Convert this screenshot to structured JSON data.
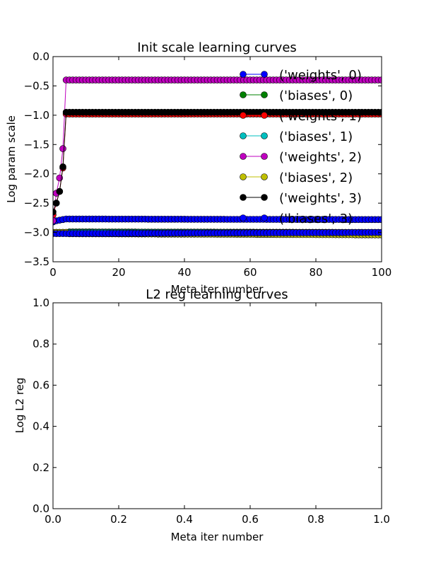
{
  "chart_data": [
    {
      "type": "line",
      "title": "Init scale learning curves",
      "xlabel": "Meta iter number",
      "ylabel": "Log param scale",
      "xlim": [
        0,
        100
      ],
      "ylim": [
        -3.5,
        0.0
      ],
      "xticks": [
        0,
        20,
        40,
        60,
        80,
        100
      ],
      "yticks": [
        0.0,
        -0.5,
        -1.0,
        -1.5,
        -2.0,
        -2.5,
        -3.0,
        -3.5
      ],
      "xtick_labels": [
        "0",
        "20",
        "40",
        "60",
        "80",
        "100"
      ],
      "ytick_labels": [
        "0.0",
        "−0.5",
        "−1.0",
        "−1.5",
        "−2.0",
        "−2.5",
        "−3.0",
        "−3.5"
      ],
      "grid": false,
      "legend": "top-right",
      "marker": "circle",
      "series": [
        {
          "name": "('weights', 0)",
          "color": "#0000ff",
          "start": [
            -2.82,
            -2.8,
            -2.79,
            -2.78,
            -2.77
          ],
          "value": -2.77,
          "drift": -2.78
        },
        {
          "name": "('biases', 0)",
          "color": "#008000",
          "start": [
            -3.0,
            -3.0,
            -3.0,
            -3.0,
            -3.0
          ],
          "value": -2.99,
          "drift": -3.0
        },
        {
          "name": "('weights', 1)",
          "color": "#ff0000",
          "start": [
            -2.7,
            -2.5,
            -2.3,
            -1.9,
            -0.98
          ],
          "value": -0.98,
          "drift": -0.98
        },
        {
          "name": "('biases', 1)",
          "color": "#00bfbf",
          "start": [
            -3.0,
            -3.0,
            -3.0,
            -3.0,
            -3.0
          ],
          "value": -3.0,
          "drift": -3.0
        },
        {
          "name": "('weights', 2)",
          "color": "#bf00bf",
          "start": [
            -2.8,
            -2.33,
            -2.07,
            -1.57,
            -0.4
          ],
          "value": -0.4,
          "drift": -0.4
        },
        {
          "name": "('biases', 2)",
          "color": "#bfbf00",
          "start": [
            -3.0,
            -3.0,
            -3.0,
            -3.0,
            -3.0
          ],
          "value": -3.02,
          "drift": -3.04
        },
        {
          "name": "('weights', 3)",
          "color": "#000000",
          "start": [
            -2.65,
            -2.5,
            -2.3,
            -1.88,
            -0.95
          ],
          "value": -0.95,
          "drift": -0.95
        },
        {
          "name": "('biases', 3)",
          "color": "#0000ff",
          "start": [
            -3.02,
            -3.02,
            -3.02,
            -3.02,
            -3.02
          ],
          "value": -3.02,
          "drift": -3.0
        }
      ]
    },
    {
      "type": "line",
      "title": "L2 reg learning curves",
      "xlabel": "Meta iter number",
      "ylabel": "Log L2 reg",
      "xlim": [
        0.0,
        1.0
      ],
      "ylim": [
        0.0,
        1.0
      ],
      "xticks": [
        0.0,
        0.2,
        0.4,
        0.6,
        0.8,
        1.0
      ],
      "yticks": [
        0.0,
        0.2,
        0.4,
        0.6,
        0.8,
        1.0
      ],
      "xtick_labels": [
        "0.0",
        "0.2",
        "0.4",
        "0.6",
        "0.8",
        "1.0"
      ],
      "ytick_labels": [
        "0.0",
        "0.2",
        "0.4",
        "0.6",
        "0.8",
        "1.0"
      ],
      "grid": false,
      "series": []
    }
  ]
}
